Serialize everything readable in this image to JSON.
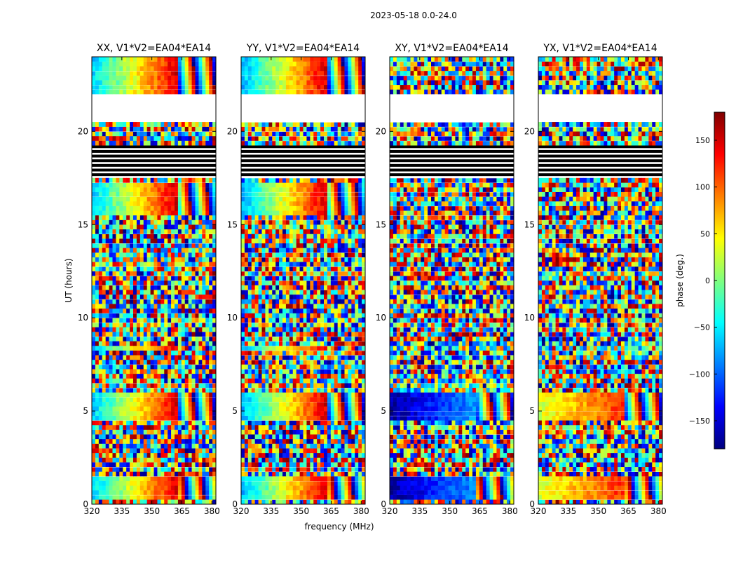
{
  "chart_data": {
    "type": "heatmap",
    "suptitle": "2023-05-18 0.0-24.0",
    "xlabel": "frequency (MHz)",
    "ylabel": "UT (hours)",
    "xlim": [
      320,
      382
    ],
    "ylim": [
      0,
      24
    ],
    "xticks": [
      "320",
      "335",
      "350",
      "365",
      "380"
    ],
    "xtick_values": [
      320,
      335,
      350,
      365,
      380
    ],
    "yticks": [
      "0",
      "5",
      "10",
      "15",
      "20"
    ],
    "ytick_values": [
      0,
      5,
      10,
      15,
      20
    ],
    "colorbar": {
      "label": "phase (deg.)",
      "range": [
        -180,
        180
      ],
      "ticks": [
        "150",
        "100",
        "50",
        "0",
        "−50",
        "−100",
        "−150"
      ],
      "tick_values": [
        150,
        100,
        50,
        0,
        -50,
        -100,
        -150
      ],
      "colormap": [
        "#00007f",
        "#0000ff",
        "#007fff",
        "#00ffff",
        "#7fff7f",
        "#ffff00",
        "#ff7f00",
        "#ff0000",
        "#7f0000"
      ]
    },
    "empty_intervals_hours": [
      [
        21.9,
        20.4
      ]
    ],
    "flagged_intervals_hours": [
      [
        19.2,
        17.5
      ]
    ],
    "panels": [
      {
        "title": "XX, V1*V2=EA04*EA14",
        "coherent_phase_hours": [
          [
            22.0,
            24.0
          ],
          [
            15.6,
            17.3
          ],
          [
            4.6,
            6.0
          ],
          [
            0.3,
            1.5
          ],
          [
            8.3,
            8.6
          ]
        ],
        "phase_ramp": [
          -60,
          150
        ]
      },
      {
        "title": "YY, V1*V2=EA04*EA14",
        "coherent_phase_hours": [
          [
            22.0,
            24.0
          ],
          [
            15.6,
            17.3
          ],
          [
            4.6,
            6.0
          ],
          [
            0.3,
            1.5
          ],
          [
            8.3,
            8.6
          ]
        ],
        "phase_ramp": [
          -70,
          150
        ]
      },
      {
        "title": "XY, V1*V2=EA04*EA14",
        "coherent_phase_hours": [
          [
            4.6,
            6.0
          ],
          [
            0.3,
            1.5
          ]
        ],
        "phase_ramp": [
          -170,
          -80
        ]
      },
      {
        "title": "YX, V1*V2=EA04*EA14",
        "coherent_phase_hours": [
          [
            4.6,
            6.0
          ],
          [
            0.3,
            1.5
          ]
        ],
        "phase_ramp": [
          30,
          120
        ]
      }
    ]
  }
}
